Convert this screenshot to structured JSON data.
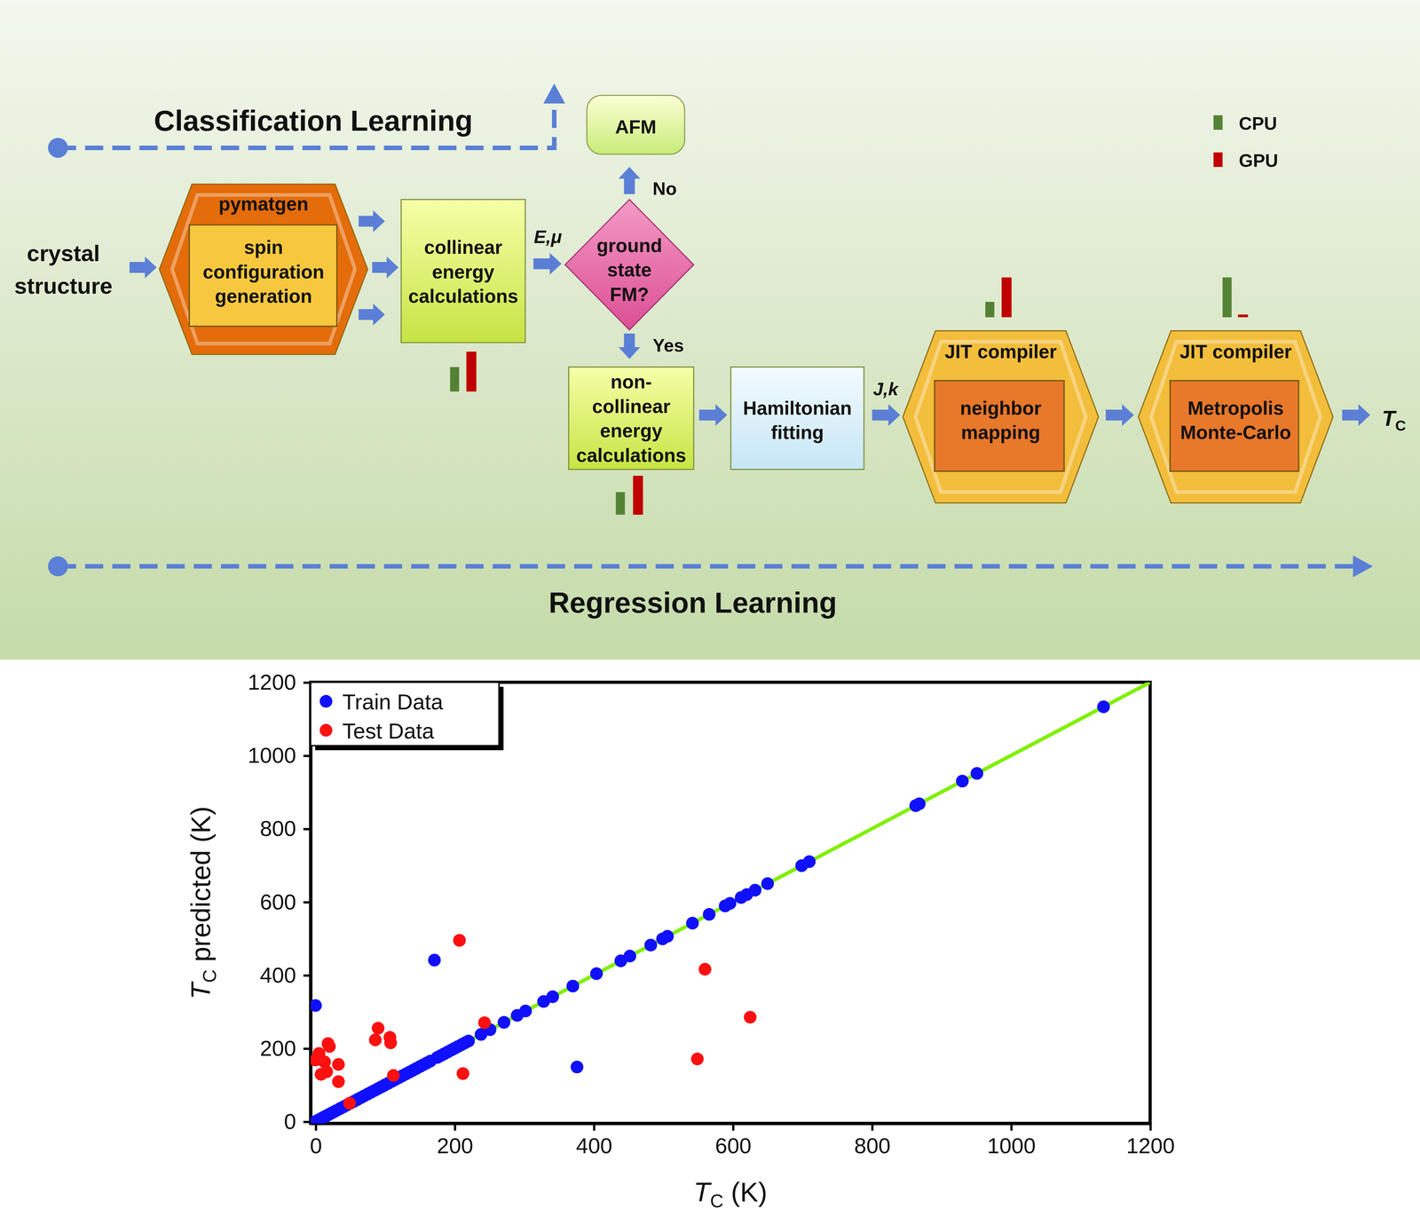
{
  "diagram": {
    "classification_label": "Classification Learning",
    "regression_label": "Regression Learning",
    "input": [
      "crystal",
      "structure"
    ],
    "nodes": [
      {
        "header": "pymatgen",
        "lines": [
          "spin",
          "configuration",
          "generation"
        ]
      },
      {
        "lines": [
          "collinear",
          "energy",
          "calculations"
        ]
      },
      {
        "lines": [
          "ground",
          "state",
          "FM?"
        ]
      },
      {
        "lines": [
          "AFM"
        ]
      },
      {
        "lines": [
          "non-",
          "collinear",
          "energy",
          "calculations"
        ]
      },
      {
        "lines": [
          "Hamiltonian",
          "fitting"
        ]
      },
      {
        "header": "JIT compiler",
        "lines": [
          "neighbor",
          "mapping"
        ]
      },
      {
        "header": "JIT compiler",
        "lines": [
          "Metropolis",
          "Monte-Carlo"
        ]
      }
    ],
    "edge_labels": [
      "E,μ",
      "No",
      "Yes",
      "J,k"
    ],
    "output": "TC",
    "legend": [
      {
        "name": "CPU",
        "color": "#548235"
      },
      {
        "name": "GPU",
        "color": "#c00000"
      }
    ]
  },
  "chart_data": {
    "type": "scatter",
    "x_label": "TC (K)",
    "y_label": "TC predicted (K)",
    "xlim": [
      -7,
      1200
    ],
    "ylim": [
      -5,
      1200
    ],
    "xticks": [
      0,
      200,
      400,
      600,
      800,
      1000,
      1200
    ],
    "yticks": [
      0,
      200,
      400,
      600,
      800,
      1000,
      1200
    ],
    "legend": "top-left",
    "reference_line": {
      "x": [
        0,
        1200
      ],
      "y": [
        0,
        1200
      ],
      "color": "#80f000"
    },
    "series": [
      {
        "name": "Train Data",
        "color": "#1010ff",
        "marker": "circle",
        "x": [
          0,
          3,
          6,
          9,
          12,
          15,
          18,
          22,
          26,
          30,
          35,
          40,
          45,
          50,
          55,
          60,
          65,
          70,
          75,
          80,
          85,
          90,
          95,
          100,
          105,
          110,
          115,
          120,
          125,
          130,
          135,
          140,
          145,
          150,
          155,
          160,
          165,
          175,
          180,
          185,
          190,
          195,
          200,
          205,
          210,
          215,
          220,
          238,
          251,
          271,
          290,
          302,
          328,
          341,
          370,
          404,
          439,
          452,
          482,
          499,
          506,
          542,
          566,
          589,
          596,
          612,
          620,
          632,
          650,
          699,
          710,
          863,
          868,
          930,
          951,
          1133,
          171,
          0,
          376
        ],
        "values": [
          0,
          3,
          6,
          9,
          12,
          15,
          18,
          22,
          26,
          30,
          35,
          40,
          45,
          50,
          55,
          60,
          65,
          70,
          75,
          80,
          85,
          90,
          95,
          100,
          105,
          110,
          115,
          120,
          125,
          130,
          135,
          140,
          145,
          150,
          155,
          160,
          165,
          175,
          180,
          185,
          190,
          195,
          200,
          205,
          210,
          215,
          220,
          238,
          251,
          271,
          290,
          302,
          328,
          341,
          370,
          404,
          439,
          452,
          482,
          499,
          506,
          542,
          566,
          589,
          596,
          612,
          620,
          632,
          650,
          699,
          710,
          863,
          868,
          930,
          951,
          1133,
          441,
          317,
          149
        ]
      },
      {
        "name": "Test Data",
        "color": "#ff1010",
        "marker": "circle",
        "x": [
          0,
          5,
          13,
          8,
          16,
          18,
          20,
          33,
          33,
          49,
          86,
          90,
          107,
          108,
          112,
          207,
          212,
          243,
          560,
          549,
          625
        ],
        "values": [
          168,
          186,
          163,
          129,
          136,
          213,
          205,
          156,
          109,
          50,
          223,
          255,
          230,
          215,
          126,
          495,
          131,
          270,
          416,
          171,
          285
        ]
      }
    ]
  }
}
